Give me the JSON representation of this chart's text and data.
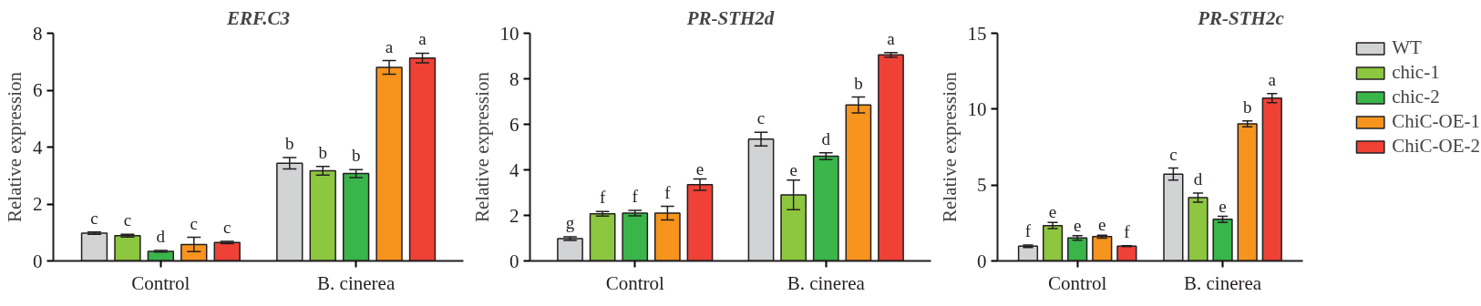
{
  "chart_data": [
    {
      "type": "bar",
      "title": "ERF.C3",
      "ylabel": "Relative expression",
      "categories": [
        "Control",
        "B. cinerea"
      ],
      "ylim": [
        0,
        8
      ],
      "yticks": [
        0,
        2,
        4,
        6,
        8
      ],
      "grid": false,
      "legend": false,
      "series": [
        {
          "color": "#d1d3d4",
          "values": [
            0.98,
            3.43
          ],
          "errors": [
            0.04,
            0.2
          ],
          "value_labels": [
            "c",
            "b"
          ]
        },
        {
          "color": "#8dc63f",
          "values": [
            0.89,
            3.17
          ],
          "errors": [
            0.05,
            0.15
          ],
          "value_labels": [
            "c",
            "b"
          ]
        },
        {
          "color": "#39b54a",
          "values": [
            0.34,
            3.07
          ],
          "errors": [
            0.03,
            0.14
          ],
          "value_labels": [
            "d",
            "b"
          ]
        },
        {
          "color": "#f7941d",
          "values": [
            0.58,
            6.8
          ],
          "errors": [
            0.25,
            0.24
          ],
          "value_labels": [
            "c",
            "a"
          ]
        },
        {
          "color": "#ef4136",
          "values": [
            0.65,
            7.13
          ],
          "errors": [
            0.04,
            0.17
          ],
          "value_labels": [
            "c",
            "a"
          ]
        }
      ]
    },
    {
      "type": "bar",
      "title": "PR-STH2d",
      "ylabel": "Relative expression",
      "categories": [
        "Control",
        "B. cinerea"
      ],
      "ylim": [
        0,
        10
      ],
      "yticks": [
        0,
        2,
        4,
        6,
        8,
        10
      ],
      "grid": false,
      "legend": false,
      "series": [
        {
          "color": "#d1d3d4",
          "values": [
            0.98,
            5.35
          ],
          "errors": [
            0.08,
            0.3
          ],
          "value_labels": [
            "g",
            "c"
          ]
        },
        {
          "color": "#8dc63f",
          "values": [
            2.07,
            2.9
          ],
          "errors": [
            0.1,
            0.65
          ],
          "value_labels": [
            "f",
            "e"
          ]
        },
        {
          "color": "#39b54a",
          "values": [
            2.1,
            4.6
          ],
          "errors": [
            0.12,
            0.15
          ],
          "value_labels": [
            "f",
            "d"
          ]
        },
        {
          "color": "#f7941d",
          "values": [
            2.1,
            6.85
          ],
          "errors": [
            0.3,
            0.35
          ],
          "value_labels": [
            "f",
            "b"
          ]
        },
        {
          "color": "#ef4136",
          "values": [
            3.35,
            9.05
          ],
          "errors": [
            0.25,
            0.1
          ],
          "value_labels": [
            "e",
            "a"
          ]
        }
      ]
    },
    {
      "type": "bar",
      "title": "PR-STH2c",
      "ylabel": "Relative expression",
      "categories": [
        "Control",
        "B. cinerea"
      ],
      "ylim": [
        0,
        15
      ],
      "yticks": [
        0,
        5,
        10,
        15
      ],
      "grid": false,
      "legend": "right",
      "series": [
        {
          "name": "WT",
          "color": "#d1d3d4",
          "values": [
            0.97,
            5.72
          ],
          "errors": [
            0.08,
            0.4
          ],
          "value_labels": [
            "f",
            "c"
          ]
        },
        {
          "name": "chic-1",
          "color": "#8dc63f",
          "values": [
            2.33,
            4.17
          ],
          "errors": [
            0.2,
            0.3
          ],
          "value_labels": [
            "e",
            "d"
          ]
        },
        {
          "name": "chic-2",
          "color": "#39b54a",
          "values": [
            1.51,
            2.74
          ],
          "errors": [
            0.15,
            0.2
          ],
          "value_labels": [
            "e",
            "e"
          ]
        },
        {
          "name": "ChiC-OE-1",
          "color": "#f7941d",
          "values": [
            1.6,
            9.03
          ],
          "errors": [
            0.1,
            0.2
          ],
          "value_labels": [
            "e",
            "b"
          ]
        },
        {
          "name": "ChiC-OE-2",
          "color": "#ef4136",
          "values": [
            0.97,
            10.73
          ],
          "errors": [
            0.03,
            0.3
          ],
          "value_labels": [
            "f",
            "a"
          ]
        }
      ]
    }
  ]
}
